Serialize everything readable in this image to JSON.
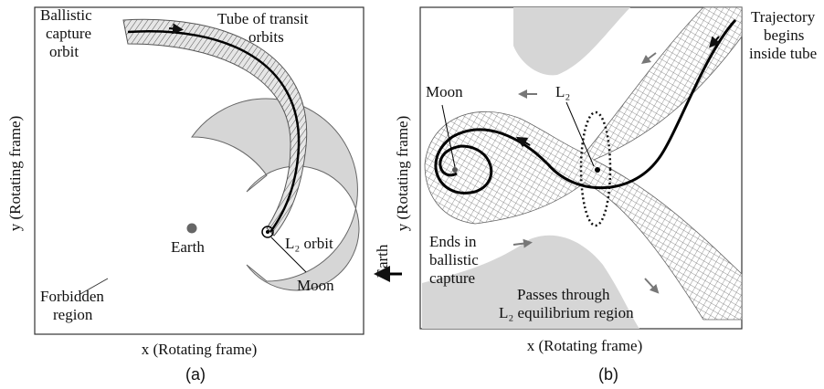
{
  "panel_a": {
    "ballistic_label": [
      "Ballistic",
      "capture",
      "orbit"
    ],
    "tube_label": [
      "Tube of transit",
      "orbits"
    ],
    "earth": "Earth",
    "l2_orbit": "L₂ orbit",
    "moon": "Moon",
    "forbidden_label": [
      "Forbidden",
      "region"
    ],
    "y_axis": "y (Rotating frame)",
    "x_axis": "x (Rotating frame)",
    "caption": "(a)"
  },
  "panel_b": {
    "trajectory_label": [
      "Trajectory",
      "begins",
      "inside tube"
    ],
    "moon": "Moon",
    "l2": "L₂",
    "ends_label": [
      "Ends in",
      "ballistic",
      "capture"
    ],
    "passes_label": [
      "Passes through",
      "L₂ equilibrium region"
    ],
    "earth": "Earth",
    "y_axis": "y (Rotating frame)",
    "x_axis": "x (Rotating frame)",
    "caption": "(b)"
  }
}
